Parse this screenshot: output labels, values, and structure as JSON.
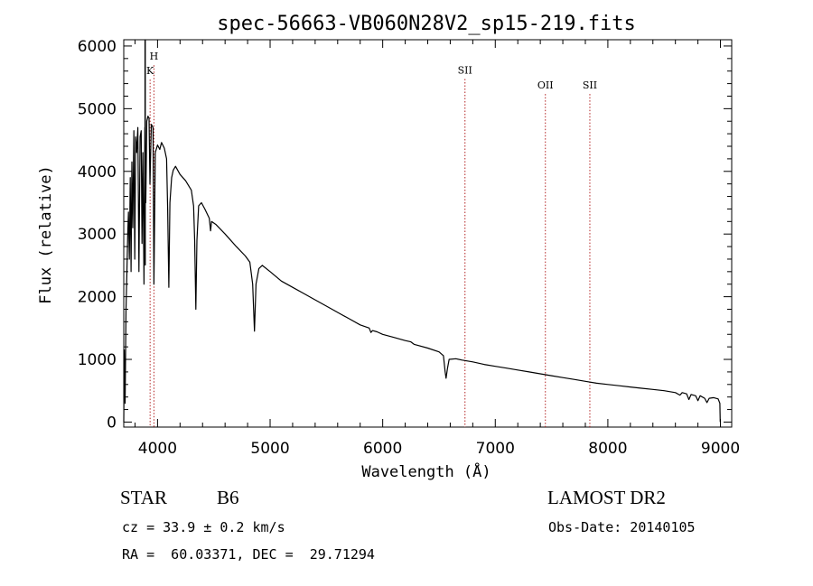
{
  "chart_data": {
    "type": "line",
    "title": "spec-56663-VB060N28V2_sp15-219.fits",
    "xlabel": "Wavelength (Å)",
    "ylabel": "Flux (relative)",
    "xlim": [
      3700,
      9100
    ],
    "ylim": [
      -80,
      6100
    ],
    "x_ticks": [
      4000,
      5000,
      6000,
      7000,
      8000,
      9000
    ],
    "y_ticks": [
      0,
      1000,
      2000,
      3000,
      4000,
      5000,
      6000
    ],
    "grid": false,
    "series": [
      {
        "color": "#000000",
        "points": [
          [
            3700,
            0
          ],
          [
            3705,
            1150
          ],
          [
            3712,
            300
          ],
          [
            3720,
            1800
          ],
          [
            3728,
            2400
          ],
          [
            3735,
            3000
          ],
          [
            3742,
            3350
          ],
          [
            3750,
            2600
          ],
          [
            3758,
            3900
          ],
          [
            3765,
            2400
          ],
          [
            3772,
            4150
          ],
          [
            3780,
            3100
          ],
          [
            3790,
            4650
          ],
          [
            3798,
            2600
          ],
          [
            3806,
            4550
          ],
          [
            3815,
            4300
          ],
          [
            3825,
            4700
          ],
          [
            3835,
            2400
          ],
          [
            3845,
            4550
          ],
          [
            3855,
            4650
          ],
          [
            3862,
            2850
          ],
          [
            3870,
            4300
          ],
          [
            3880,
            2200
          ],
          [
            3888,
            4700
          ],
          [
            3896,
            3500
          ],
          [
            3905,
            4800
          ],
          [
            3915,
            4880
          ],
          [
            3925,
            4850
          ],
          [
            3933,
            3800
          ],
          [
            3945,
            4750
          ],
          [
            3960,
            4700
          ],
          [
            3968,
            2200
          ],
          [
            3980,
            4300
          ],
          [
            4000,
            4420
          ],
          [
            4020,
            4350
          ],
          [
            4035,
            4460
          ],
          [
            4060,
            4370
          ],
          [
            4080,
            4200
          ],
          [
            4090,
            3400
          ],
          [
            4100,
            2150
          ],
          [
            4110,
            3500
          ],
          [
            4125,
            3900
          ],
          [
            4140,
            4020
          ],
          [
            4160,
            4080
          ],
          [
            4200,
            3950
          ],
          [
            4250,
            3850
          ],
          [
            4300,
            3700
          ],
          [
            4320,
            3450
          ],
          [
            4330,
            2900
          ],
          [
            4340,
            1800
          ],
          [
            4350,
            2900
          ],
          [
            4365,
            3450
          ],
          [
            4390,
            3500
          ],
          [
            4420,
            3400
          ],
          [
            4460,
            3250
          ],
          [
            4471,
            3050
          ],
          [
            4480,
            3200
          ],
          [
            4520,
            3150
          ],
          [
            4600,
            3000
          ],
          [
            4700,
            2800
          ],
          [
            4780,
            2650
          ],
          [
            4820,
            2550
          ],
          [
            4845,
            2200
          ],
          [
            4861,
            1450
          ],
          [
            4875,
            2200
          ],
          [
            4900,
            2450
          ],
          [
            4930,
            2500
          ],
          [
            5000,
            2400
          ],
          [
            5100,
            2250
          ],
          [
            5200,
            2150
          ],
          [
            5300,
            2050
          ],
          [
            5400,
            1950
          ],
          [
            5500,
            1850
          ],
          [
            5600,
            1750
          ],
          [
            5700,
            1650
          ],
          [
            5800,
            1550
          ],
          [
            5880,
            1500
          ],
          [
            5895,
            1430
          ],
          [
            5910,
            1460
          ],
          [
            5950,
            1440
          ],
          [
            6000,
            1400
          ],
          [
            6100,
            1350
          ],
          [
            6200,
            1300
          ],
          [
            6250,
            1280
          ],
          [
            6280,
            1240
          ],
          [
            6300,
            1230
          ],
          [
            6400,
            1180
          ],
          [
            6500,
            1120
          ],
          [
            6540,
            1060
          ],
          [
            6555,
            800
          ],
          [
            6563,
            700
          ],
          [
            6575,
            850
          ],
          [
            6590,
            1000
          ],
          [
            6650,
            1010
          ],
          [
            6700,
            990
          ],
          [
            6800,
            960
          ],
          [
            6900,
            920
          ],
          [
            7000,
            890
          ],
          [
            7100,
            860
          ],
          [
            7200,
            830
          ],
          [
            7300,
            800
          ],
          [
            7400,
            770
          ],
          [
            7500,
            740
          ],
          [
            7600,
            710
          ],
          [
            7700,
            680
          ],
          [
            7800,
            650
          ],
          [
            7900,
            620
          ],
          [
            8000,
            600
          ],
          [
            8100,
            580
          ],
          [
            8200,
            560
          ],
          [
            8300,
            540
          ],
          [
            8400,
            520
          ],
          [
            8500,
            500
          ],
          [
            8600,
            470
          ],
          [
            8640,
            430
          ],
          [
            8660,
            470
          ],
          [
            8700,
            450
          ],
          [
            8720,
            360
          ],
          [
            8740,
            440
          ],
          [
            8780,
            420
          ],
          [
            8800,
            340
          ],
          [
            8820,
            420
          ],
          [
            8860,
            380
          ],
          [
            8880,
            310
          ],
          [
            8900,
            380
          ],
          [
            8940,
            390
          ],
          [
            8980,
            370
          ],
          [
            8995,
            300
          ],
          [
            8998,
            0
          ]
        ]
      }
    ],
    "spike": {
      "x": 3890,
      "y_from": 2500,
      "y_to": 6100
    },
    "emission_lines": [
      {
        "label": "H",
        "x": 3968,
        "label_y": 5780
      },
      {
        "label": "K",
        "x": 3934,
        "label_y": 5550
      },
      {
        "label": "SII",
        "x": 6731,
        "label_y": 5560
      },
      {
        "label": "OII",
        "x": 7445,
        "label_y": 5320
      },
      {
        "label": "SII",
        "x": 7840,
        "label_y": 5320
      }
    ],
    "line_color": "#b22222"
  },
  "info": {
    "class_label": "STAR",
    "subclass": "B6",
    "survey": "LAMOST DR2",
    "redshift": "cz = 33.9 ± 0.2 km/s",
    "obs_date": "Obs-Date: 20140105",
    "coords": "RA =  60.03371, DEC =  29.71294"
  }
}
